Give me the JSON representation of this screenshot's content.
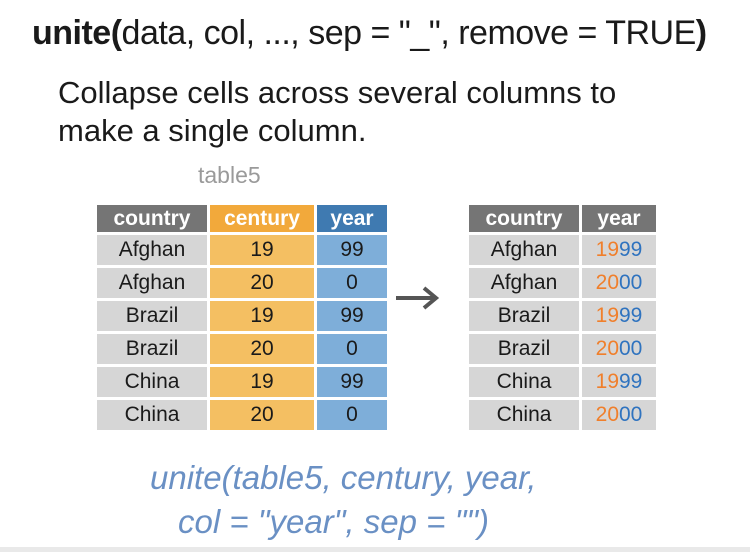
{
  "signature": {
    "fn": "unite",
    "open_paren": "(",
    "args": "data, col, ..., sep = \"_\", remove = TRUE",
    "close_paren": ")"
  },
  "description": "Collapse cells across several columns to make a single column.",
  "left_table": {
    "caption": "table5",
    "headers": [
      "country",
      "century",
      "year"
    ],
    "rows": [
      [
        "Afghan",
        "19",
        "99"
      ],
      [
        "Afghan",
        "20",
        "0"
      ],
      [
        "Brazil",
        "19",
        "99"
      ],
      [
        "Brazil",
        "20",
        "0"
      ],
      [
        "China",
        "19",
        "99"
      ],
      [
        "China",
        "20",
        "0"
      ]
    ]
  },
  "right_table": {
    "headers": [
      "country",
      "year"
    ],
    "rows": [
      {
        "country": "Afghan",
        "year_part1": "19",
        "year_part2": "99"
      },
      {
        "country": "Afghan",
        "year_part1": "20",
        "year_part2": "00"
      },
      {
        "country": "Brazil",
        "year_part1": "19",
        "year_part2": "99"
      },
      {
        "country": "Brazil",
        "year_part1": "20",
        "year_part2": "00"
      },
      {
        "country": "China",
        "year_part1": "19",
        "year_part2": "99"
      },
      {
        "country": "China",
        "year_part1": "20",
        "year_part2": "00"
      }
    ]
  },
  "code": {
    "line1": "unite(table5, century, year,",
    "line2": "col = \"year\", sep = \"\")"
  },
  "colors": {
    "header_gray": "#757575",
    "century_orange": "#f2a93b",
    "year_blue": "#3f7ab1",
    "century_part": "#f07f2b",
    "year_part": "#2f73bf",
    "code_text": "#6a90c4"
  },
  "icons": {
    "arrow": "right-arrow-icon"
  }
}
